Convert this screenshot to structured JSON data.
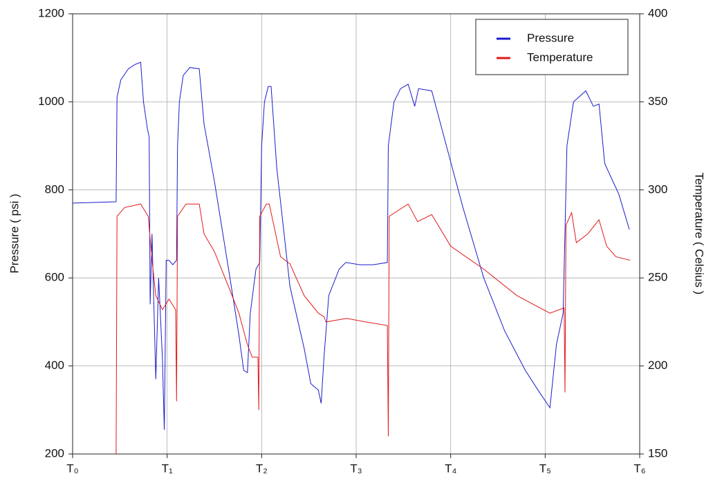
{
  "chart_data": {
    "type": "line",
    "ylabel": "Pressure ( psi )",
    "y2label": "Temperature ( Celsius )",
    "xlim": [
      0,
      6
    ],
    "xticks": [
      {
        "value": 0,
        "label": "T₀"
      },
      {
        "value": 1,
        "label": "T₁"
      },
      {
        "value": 2,
        "label": "T₂"
      },
      {
        "value": 3,
        "label": "T₃"
      },
      {
        "value": 4,
        "label": "T₄"
      },
      {
        "value": 5,
        "label": "T₅"
      },
      {
        "value": 6,
        "label": "T₆"
      }
    ],
    "ylim": [
      200,
      1200
    ],
    "yticks": [
      200,
      400,
      600,
      800,
      1000,
      1200
    ],
    "y2lim": [
      150,
      400
    ],
    "y2ticks": [
      150,
      200,
      250,
      300,
      350,
      400
    ],
    "grid": true,
    "legend": "upper right",
    "series": [
      {
        "name": "Pressure",
        "color": "#1a1acc",
        "x": [
          0,
          0.46,
          0.47,
          0.51,
          0.59,
          0.66,
          0.72,
          0.75,
          0.79,
          0.81,
          0.82,
          0.84,
          0.88,
          0.91,
          0.95,
          0.97,
          0.99,
          1.02,
          1.06,
          1.1,
          1.11,
          1.13,
          1.17,
          1.24,
          1.34,
          1.39,
          1.5,
          1.65,
          1.76,
          1.81,
          1.85,
          1.88,
          1.94,
          1.98,
          2.0,
          2.03,
          2.07,
          2.1,
          2.16,
          2.3,
          2.45,
          2.52,
          2.6,
          2.63,
          2.66,
          2.71,
          2.82,
          2.89,
          3.04,
          3.18,
          3.33,
          3.34,
          3.4,
          3.47,
          3.55,
          3.62,
          3.66,
          3.8,
          3.98,
          4.13,
          4.35,
          4.57,
          4.79,
          4.94,
          5.05,
          5.12,
          5.19,
          5.23,
          5.3,
          5.43,
          5.51,
          5.57,
          5.63,
          5.78,
          5.89
        ],
        "values": [
          770,
          773,
          1010,
          1050,
          1075,
          1085,
          1090,
          1000,
          940,
          920,
          540,
          700,
          370,
          600,
          420,
          255,
          640,
          640,
          630,
          640,
          900,
          1000,
          1060,
          1078,
          1075,
          950,
          820,
          620,
          470,
          390,
          385,
          520,
          620,
          635,
          900,
          1000,
          1035,
          1035,
          850,
          580,
          440,
          360,
          345,
          315,
          420,
          560,
          620,
          635,
          630,
          630,
          635,
          900,
          1000,
          1030,
          1040,
          990,
          1030,
          1025,
          880,
          760,
          600,
          480,
          390,
          340,
          305,
          450,
          520,
          900,
          1000,
          1025,
          990,
          995,
          860,
          790,
          710
        ]
      },
      {
        "name": "Temperature",
        "color": "#e01818",
        "axis": "y2",
        "x": [
          0.46,
          0.47,
          0.55,
          0.72,
          0.8,
          0.84,
          0.88,
          0.95,
          1.02,
          1.09,
          1.1,
          1.11,
          1.2,
          1.34,
          1.39,
          1.5,
          1.65,
          1.76,
          1.85,
          1.9,
          1.96,
          1.97,
          1.98,
          2.05,
          2.08,
          2.2,
          2.3,
          2.45,
          2.6,
          2.66,
          2.68,
          2.9,
          3.1,
          3.33,
          3.34,
          3.35,
          3.55,
          3.65,
          3.8,
          4.0,
          4.35,
          4.7,
          5.05,
          5.2,
          5.21,
          5.22,
          5.28,
          5.33,
          5.45,
          5.57,
          5.65,
          5.75,
          5.9
        ],
        "values": [
          150,
          285,
          290,
          292,
          285,
          260,
          240,
          232,
          238,
          232,
          180,
          285,
          292,
          292,
          275,
          265,
          245,
          230,
          212,
          205,
          205,
          175,
          285,
          292,
          292,
          262,
          258,
          240,
          230,
          228,
          225,
          227,
          225,
          223,
          160,
          285,
          292,
          282,
          286,
          268,
          255,
          240,
          230,
          233,
          185,
          280,
          287,
          270,
          275,
          283,
          268,
          262,
          260
        ]
      }
    ]
  }
}
